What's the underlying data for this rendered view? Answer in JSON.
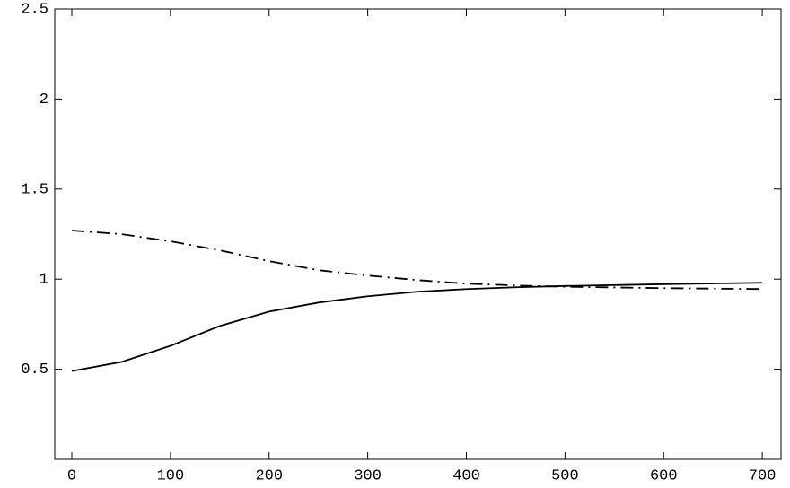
{
  "chart_data": {
    "type": "line",
    "x": [
      0,
      50,
      100,
      150,
      200,
      250,
      300,
      350,
      400,
      450,
      500,
      600,
      700
    ],
    "series": [
      {
        "color": "#000000",
        "style": "solid",
        "values": [
          0.49,
          0.54,
          0.63,
          0.74,
          0.82,
          0.87,
          0.905,
          0.93,
          0.945,
          0.955,
          0.962,
          0.972,
          0.98
        ]
      },
      {
        "color": "#000000",
        "style": "dash-dot",
        "values": [
          1.27,
          1.25,
          1.21,
          1.16,
          1.1,
          1.05,
          1.02,
          0.995,
          0.975,
          0.965,
          0.958,
          0.95,
          0.945
        ]
      }
    ],
    "xlim": [
      -17.3,
      719
    ],
    "ylim": [
      0,
      2.5
    ],
    "xticks": [
      0,
      100,
      200,
      300,
      400,
      500,
      600,
      700
    ],
    "yticks": [
      0.5,
      1,
      1.5,
      2,
      2.5
    ]
  }
}
